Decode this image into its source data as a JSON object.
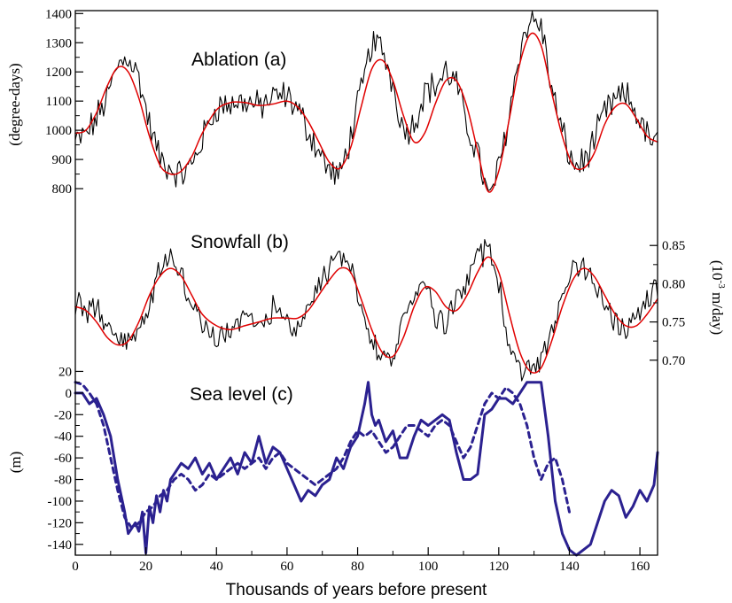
{
  "chart_data": [
    {
      "type": "line",
      "panel": "a",
      "title": "Ablation (a)",
      "ylabel": "(degree-days)",
      "xlabel": "Thousands of years before present",
      "xlim": [
        0,
        165
      ],
      "ylim": [
        700,
        1410
      ],
      "yticks": [
        800,
        900,
        1000,
        1100,
        1200,
        1300,
        1400
      ],
      "xticks": [
        0,
        20,
        40,
        60,
        80,
        100,
        120,
        140,
        160
      ],
      "grid": false,
      "series": [
        {
          "style": "noisy",
          "color": "#000000",
          "x": [
            0,
            3,
            6,
            9,
            12,
            15,
            18,
            21,
            24,
            27,
            30,
            33,
            36,
            40,
            44,
            48,
            52,
            56,
            60,
            63,
            66,
            69,
            72,
            75,
            78,
            81,
            84,
            87,
            90,
            93,
            96,
            99,
            102,
            105,
            108,
            111,
            114,
            117,
            120,
            123,
            126,
            129,
            132,
            135,
            138,
            141,
            144,
            147,
            150,
            153,
            156,
            159,
            162,
            165
          ],
          "y": [
            960,
            985,
            1040,
            1110,
            1220,
            1255,
            1180,
            1020,
            900,
            870,
            845,
            880,
            970,
            1080,
            1090,
            1100,
            1080,
            1110,
            1120,
            1070,
            1000,
            930,
            860,
            840,
            980,
            1130,
            1300,
            1280,
            1160,
            1000,
            1020,
            1140,
            1150,
            1200,
            1160,
            1010,
            930,
            760,
            870,
            1060,
            1280,
            1380,
            1360,
            1140,
            990,
            880,
            890,
            960,
            1060,
            1100,
            1120,
            1060,
            980,
            950
          ]
        },
        {
          "style": "smooth",
          "color": "#e00000",
          "x": [
            0,
            3,
            6,
            9,
            12,
            15,
            18,
            21,
            24,
            27,
            30,
            33,
            36,
            40,
            44,
            48,
            52,
            56,
            60,
            63,
            66,
            69,
            72,
            75,
            78,
            81,
            84,
            87,
            90,
            93,
            96,
            99,
            102,
            105,
            108,
            111,
            114,
            117,
            120,
            123,
            126,
            129,
            132,
            135,
            138,
            141,
            144,
            147,
            150,
            153,
            156,
            159,
            162,
            165
          ],
          "y": [
            990,
            1000,
            1060,
            1150,
            1215,
            1200,
            1110,
            980,
            880,
            850,
            860,
            910,
            990,
            1070,
            1095,
            1095,
            1085,
            1090,
            1100,
            1080,
            1030,
            960,
            890,
            870,
            940,
            1080,
            1210,
            1240,
            1170,
            1050,
            960,
            990,
            1090,
            1170,
            1170,
            1080,
            930,
            790,
            860,
            1040,
            1230,
            1330,
            1290,
            1130,
            980,
            880,
            870,
            920,
            1020,
            1080,
            1090,
            1040,
            980,
            960
          ]
        }
      ]
    },
    {
      "type": "line",
      "panel": "b",
      "title": "Snowfall (b)",
      "ylabel": "(10⁻³ m/day)",
      "ylabel_base": "(10",
      "ylabel_exp": "-3",
      "ylabel_rest": " m/day)",
      "xlim": [
        0,
        165
      ],
      "ylim": [
        0.665,
        0.885
      ],
      "yticks": [
        0.7,
        0.75,
        0.8,
        0.85
      ],
      "ytick_labels": [
        "0.70",
        "0.75",
        "0.80",
        "0.85"
      ],
      "grid": false,
      "series": [
        {
          "style": "noisy",
          "color": "#000000",
          "x": [
            0,
            3,
            6,
            9,
            12,
            15,
            18,
            21,
            24,
            27,
            30,
            33,
            36,
            40,
            44,
            48,
            52,
            56,
            60,
            63,
            66,
            69,
            72,
            75,
            78,
            81,
            84,
            87,
            90,
            93,
            96,
            99,
            102,
            105,
            108,
            111,
            114,
            117,
            120,
            123,
            126,
            129,
            132,
            135,
            138,
            141,
            144,
            147,
            150,
            153,
            156,
            159,
            162,
            165
          ],
          "y": [
            0.775,
            0.76,
            0.77,
            0.74,
            0.73,
            0.72,
            0.74,
            0.77,
            0.82,
            0.84,
            0.81,
            0.77,
            0.75,
            0.73,
            0.74,
            0.76,
            0.74,
            0.77,
            0.75,
            0.74,
            0.77,
            0.8,
            0.82,
            0.84,
            0.82,
            0.78,
            0.73,
            0.7,
            0.7,
            0.75,
            0.79,
            0.8,
            0.76,
            0.75,
            0.78,
            0.8,
            0.83,
            0.85,
            0.8,
            0.72,
            0.69,
            0.68,
            0.7,
            0.74,
            0.79,
            0.82,
            0.82,
            0.8,
            0.77,
            0.75,
            0.74,
            0.76,
            0.78,
            0.79
          ]
        },
        {
          "style": "smooth",
          "color": "#e00000",
          "x": [
            0,
            3,
            6,
            9,
            12,
            15,
            18,
            21,
            24,
            27,
            30,
            33,
            36,
            40,
            44,
            48,
            52,
            56,
            60,
            63,
            66,
            69,
            72,
            75,
            78,
            81,
            84,
            87,
            90,
            93,
            96,
            99,
            102,
            105,
            108,
            111,
            114,
            117,
            120,
            123,
            126,
            129,
            132,
            135,
            138,
            141,
            144,
            147,
            150,
            153,
            156,
            159,
            162,
            165
          ],
          "y": [
            0.77,
            0.765,
            0.75,
            0.73,
            0.72,
            0.725,
            0.75,
            0.785,
            0.81,
            0.82,
            0.81,
            0.785,
            0.76,
            0.745,
            0.74,
            0.745,
            0.75,
            0.755,
            0.755,
            0.755,
            0.765,
            0.785,
            0.805,
            0.82,
            0.815,
            0.78,
            0.74,
            0.71,
            0.705,
            0.73,
            0.77,
            0.795,
            0.79,
            0.77,
            0.765,
            0.785,
            0.815,
            0.835,
            0.815,
            0.76,
            0.71,
            0.685,
            0.69,
            0.725,
            0.77,
            0.805,
            0.82,
            0.81,
            0.785,
            0.76,
            0.745,
            0.745,
            0.76,
            0.78
          ]
        }
      ]
    },
    {
      "type": "line",
      "panel": "c",
      "title": "Sea level (c)",
      "ylabel": "(m)",
      "xlim": [
        0,
        165
      ],
      "ylim": [
        -150,
        22
      ],
      "yticks": [
        -140,
        -120,
        -100,
        -80,
        -60,
        -40,
        -20,
        0,
        20
      ],
      "grid": false,
      "series": [
        {
          "style": "solid",
          "color": "#2b2190",
          "x": [
            0,
            2,
            4,
            6,
            8,
            10,
            12,
            14,
            15,
            16,
            17,
            18,
            19,
            20,
            21,
            22,
            23,
            24,
            25,
            26,
            27,
            28,
            30,
            32,
            34,
            36,
            38,
            40,
            42,
            44,
            46,
            48,
            50,
            52,
            54,
            56,
            58,
            60,
            62,
            64,
            66,
            68,
            70,
            72,
            74,
            76,
            78,
            80,
            82,
            83,
            84,
            85,
            86,
            88,
            90,
            92,
            94,
            96,
            98,
            100,
            102,
            104,
            106,
            108,
            110,
            112,
            114,
            116,
            118,
            120,
            122,
            124,
            126,
            128,
            130,
            132,
            134,
            136,
            138,
            140,
            142,
            144,
            146,
            148,
            150,
            152,
            154,
            156,
            158,
            160,
            162,
            164,
            165
          ],
          "y": [
            0,
            0,
            -10,
            -5,
            -20,
            -40,
            -80,
            -110,
            -130,
            -125,
            -120,
            -128,
            -110,
            -148,
            -105,
            -120,
            -95,
            -110,
            -90,
            -100,
            -80,
            -75,
            -65,
            -70,
            -60,
            -75,
            -65,
            -80,
            -70,
            -60,
            -75,
            -55,
            -65,
            -40,
            -65,
            -50,
            -55,
            -70,
            -85,
            -100,
            -90,
            -95,
            -85,
            -80,
            -60,
            -70,
            -50,
            -40,
            -10,
            10,
            -20,
            -30,
            -25,
            -45,
            -35,
            -60,
            -60,
            -40,
            -25,
            -30,
            -25,
            -20,
            -25,
            -55,
            -80,
            -80,
            -75,
            -20,
            -15,
            -5,
            -5,
            -10,
            0,
            10,
            10,
            10,
            -40,
            -100,
            -130,
            -145,
            -150,
            -145,
            -140,
            -120,
            -100,
            -90,
            -95,
            -115,
            -105,
            -90,
            -100,
            -85,
            -55
          ]
        },
        {
          "style": "dashed",
          "color": "#2b2190",
          "x": [
            0,
            2,
            4,
            6,
            8,
            10,
            12,
            14,
            16,
            18,
            20,
            22,
            24,
            26,
            28,
            30,
            32,
            34,
            36,
            38,
            40,
            42,
            44,
            46,
            48,
            50,
            52,
            54,
            56,
            58,
            60,
            62,
            64,
            66,
            68,
            70,
            72,
            74,
            76,
            78,
            80,
            82,
            84,
            86,
            88,
            90,
            92,
            94,
            96,
            98,
            100,
            102,
            104,
            106,
            108,
            110,
            112,
            114,
            116,
            118,
            120,
            122,
            124,
            126,
            128,
            130,
            132,
            134,
            136,
            138,
            140
          ],
          "y": [
            10,
            8,
            0,
            -10,
            -30,
            -60,
            -90,
            -115,
            -125,
            -120,
            -110,
            -105,
            -95,
            -90,
            -80,
            -75,
            -80,
            -90,
            -85,
            -75,
            -80,
            -75,
            -70,
            -65,
            -70,
            -65,
            -60,
            -70,
            -60,
            -55,
            -65,
            -70,
            -75,
            -80,
            -85,
            -80,
            -75,
            -70,
            -60,
            -45,
            -35,
            -40,
            -35,
            -45,
            -55,
            -50,
            -40,
            -30,
            -30,
            -35,
            -40,
            -30,
            -25,
            -30,
            -45,
            -60,
            -50,
            -30,
            -10,
            0,
            -5,
            5,
            0,
            -10,
            -30,
            -60,
            -80,
            -65,
            -60,
            -80,
            -110
          ]
        }
      ]
    }
  ],
  "xlabel": "Thousands of years before present",
  "xtick_labels": [
    "0",
    "20",
    "40",
    "60",
    "80",
    "100",
    "120",
    "140",
    "160"
  ]
}
